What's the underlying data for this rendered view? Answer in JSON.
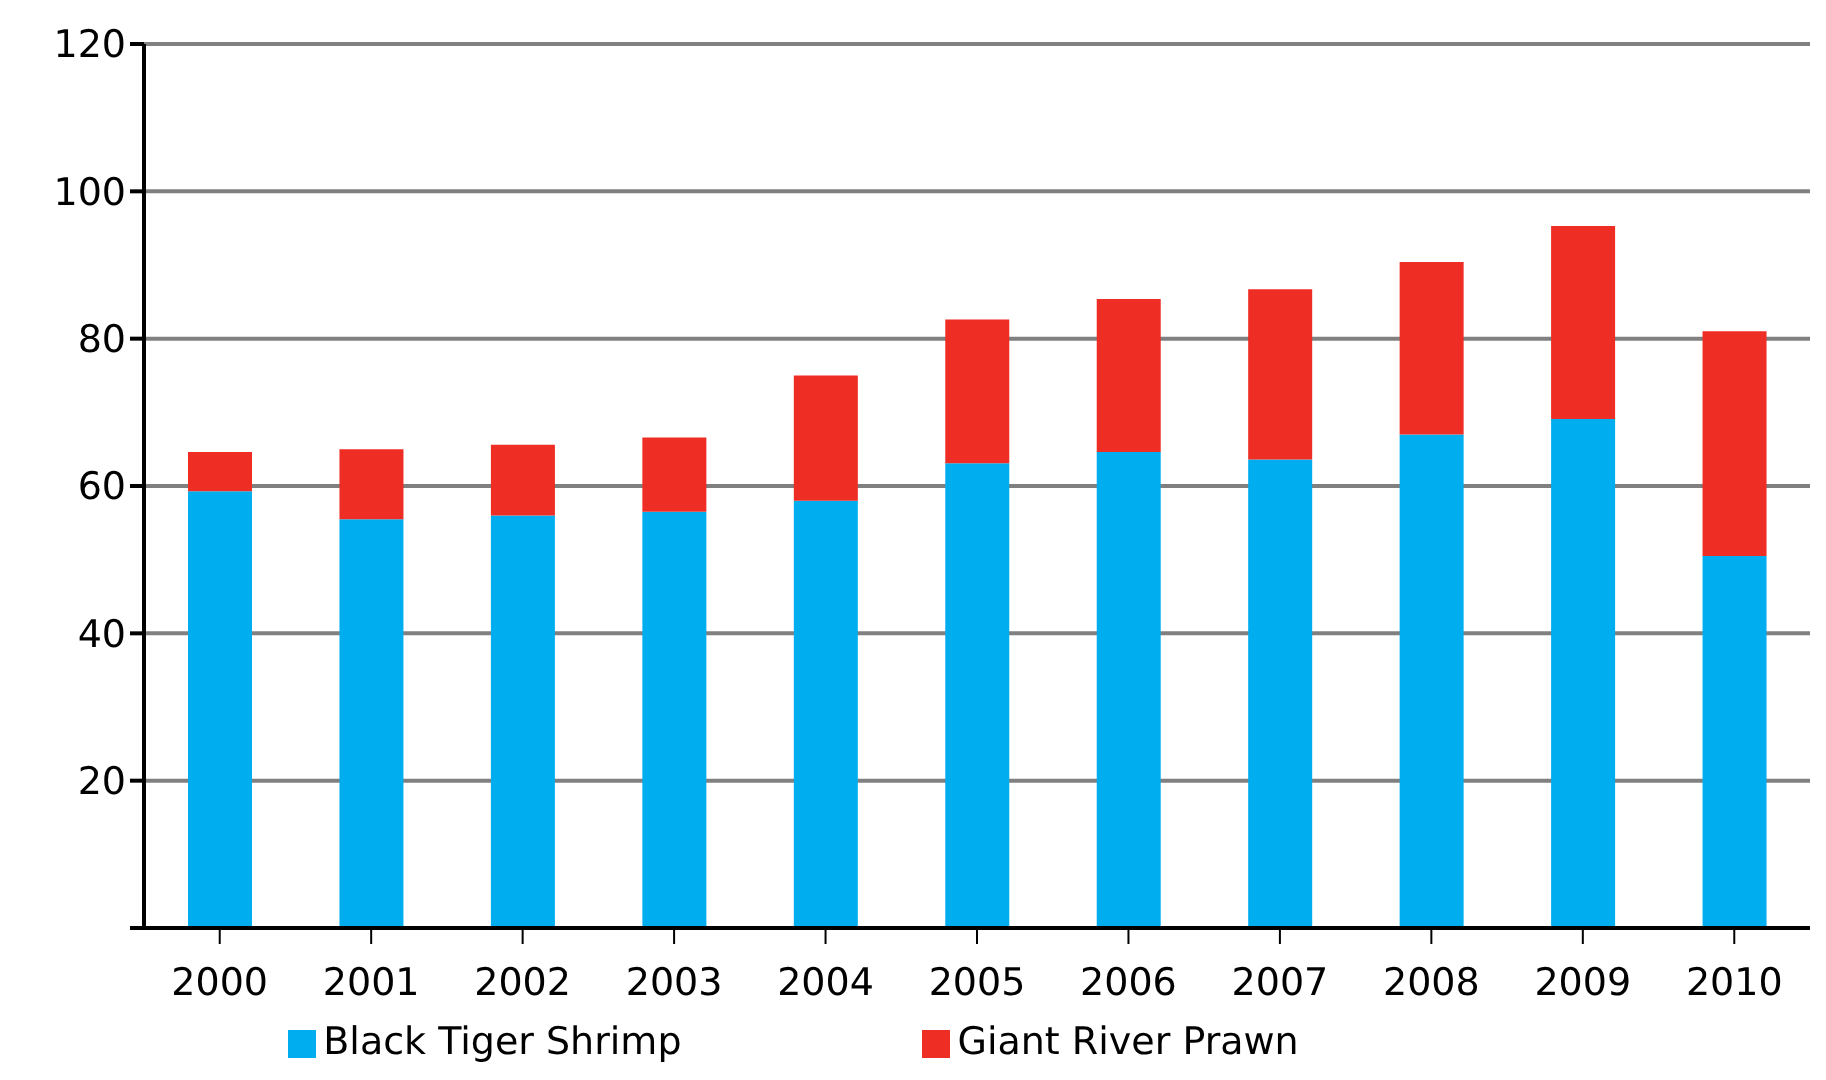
{
  "chart_data": {
    "type": "bar",
    "stacked": true,
    "categories": [
      "2000",
      "2001",
      "2002",
      "2003",
      "2004",
      "2005",
      "2006",
      "2007",
      "2008",
      "2009",
      "2010"
    ],
    "series": [
      {
        "name": "Black Tiger Shrimp",
        "color": "#00aeef",
        "values": [
          59.3,
          55.5,
          56.0,
          56.5,
          58.0,
          63.1,
          64.6,
          63.6,
          67.0,
          69.1,
          50.5
        ]
      },
      {
        "name": "Giant River Prawn",
        "color": "#ee2d24",
        "values": [
          5.3,
          9.5,
          9.6,
          10.1,
          17.0,
          19.5,
          20.8,
          23.1,
          23.4,
          26.2,
          30.5
        ]
      }
    ],
    "ylim": [
      0,
      120
    ],
    "yticks": [
      {
        "value": 0,
        "label": null
      },
      20,
      40,
      60,
      80,
      100,
      120
    ],
    "grid": "y",
    "legend": "bottom"
  }
}
